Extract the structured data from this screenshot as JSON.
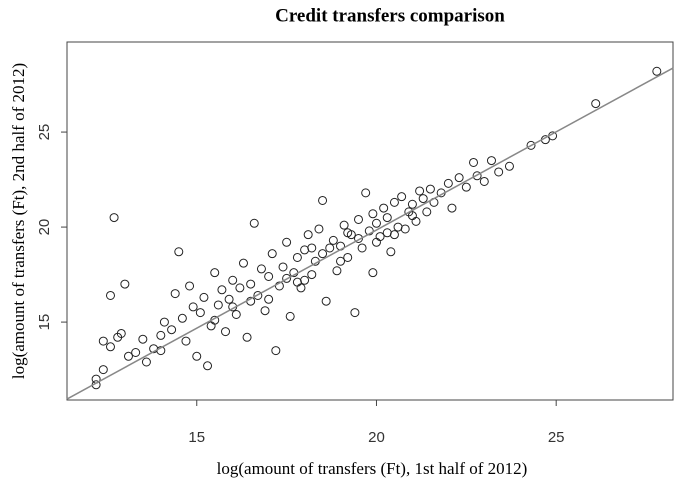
{
  "chart_data": {
    "type": "scatter",
    "title": "Credit transfers comparison",
    "x_label": "log(amount of transfers (Ft), 1st half of 2012)",
    "y_label": "log(amount of transfers (Ft), 2nd half of 2012)",
    "xlim": [
      11.39,
      28.25
    ],
    "ylim": [
      10.9,
      29.74
    ],
    "xticks": [
      15,
      20,
      25
    ],
    "yticks": [
      15,
      20,
      25
    ],
    "marker_color": "#222222",
    "line_color": "#888888",
    "x": [
      12.2,
      12.2,
      12.4,
      12.4,
      12.6,
      12.6,
      12.7,
      12.8,
      12.9,
      13.0,
      13.1,
      13.3,
      13.5,
      13.6,
      13.8,
      14.0,
      14.1,
      14.3,
      14.4,
      14.5,
      14.6,
      14.7,
      14.8,
      14.9,
      15.0,
      15.1,
      15.2,
      15.3,
      15.4,
      15.5,
      15.6,
      15.7,
      15.8,
      15.9,
      16.0,
      16.1,
      16.2,
      16.3,
      16.4,
      16.5,
      16.6,
      16.7,
      16.8,
      16.9,
      17.0,
      17.1,
      17.2,
      17.3,
      17.4,
      17.5,
      17.6,
      17.7,
      17.8,
      17.9,
      18.0,
      18.1,
      18.2,
      18.3,
      18.4,
      18.5,
      18.6,
      18.7,
      18.8,
      18.9,
      19.0,
      19.1,
      19.2,
      19.3,
      19.4,
      19.5,
      19.6,
      19.7,
      19.8,
      19.9,
      20.0,
      20.1,
      20.2,
      20.3,
      20.4,
      20.5,
      20.6,
      20.7,
      20.8,
      20.9,
      21.0,
      21.1,
      21.2,
      21.3,
      21.4,
      21.5,
      21.6,
      21.8,
      22.0,
      22.1,
      22.3,
      22.5,
      22.7,
      22.8,
      23.0,
      23.2,
      23.4,
      23.7,
      24.3,
      24.7,
      24.9,
      26.1,
      27.8,
      17.0,
      17.5,
      18.0,
      18.5,
      19.0,
      19.5,
      20.0,
      18.2,
      17.8,
      19.2,
      20.3,
      16.5,
      15.5,
      16.0,
      14.0,
      21.0,
      19.9,
      20.5
    ],
    "y": [
      11.7,
      12.0,
      12.5,
      14.0,
      13.7,
      16.4,
      20.5,
      14.2,
      14.4,
      17.0,
      13.2,
      13.4,
      14.1,
      12.9,
      13.6,
      13.5,
      15.0,
      14.6,
      16.5,
      18.7,
      15.2,
      14.0,
      16.9,
      15.8,
      13.2,
      15.5,
      16.3,
      12.7,
      14.8,
      17.6,
      15.9,
      16.7,
      14.5,
      16.2,
      17.2,
      15.4,
      16.8,
      18.1,
      14.2,
      17.0,
      20.2,
      16.4,
      17.8,
      15.6,
      17.4,
      18.6,
      13.5,
      16.9,
      17.9,
      19.2,
      15.3,
      17.6,
      18.4,
      16.8,
      18.8,
      19.6,
      17.5,
      18.2,
      19.9,
      21.4,
      16.1,
      18.9,
      19.3,
      17.7,
      19.0,
      20.1,
      18.4,
      19.6,
      15.5,
      20.4,
      18.9,
      21.8,
      19.8,
      17.6,
      20.2,
      19.5,
      21.0,
      20.5,
      18.7,
      21.3,
      20.0,
      21.6,
      19.9,
      20.8,
      21.2,
      20.3,
      21.9,
      21.5,
      20.8,
      22.0,
      21.3,
      21.8,
      22.3,
      21.0,
      22.6,
      22.1,
      23.4,
      22.7,
      22.4,
      23.5,
      22.9,
      23.2,
      24.3,
      24.6,
      24.8,
      26.5,
      28.2,
      16.2,
      17.3,
      17.2,
      18.6,
      18.2,
      19.4,
      19.2,
      18.9,
      17.1,
      19.7,
      19.7,
      16.1,
      15.1,
      15.8,
      14.3,
      20.6,
      20.7,
      19.6
    ],
    "fit_line": {
      "x": [
        11.39,
        28.25
      ],
      "y": [
        10.95,
        28.37
      ]
    }
  }
}
